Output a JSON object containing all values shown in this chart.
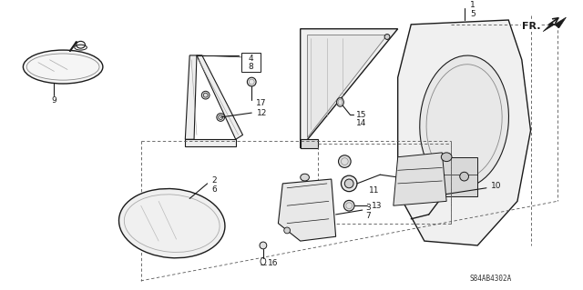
{
  "bg_color": "#ffffff",
  "diagram_code": "S84AB4302A",
  "lc": "#1a1a1a"
}
